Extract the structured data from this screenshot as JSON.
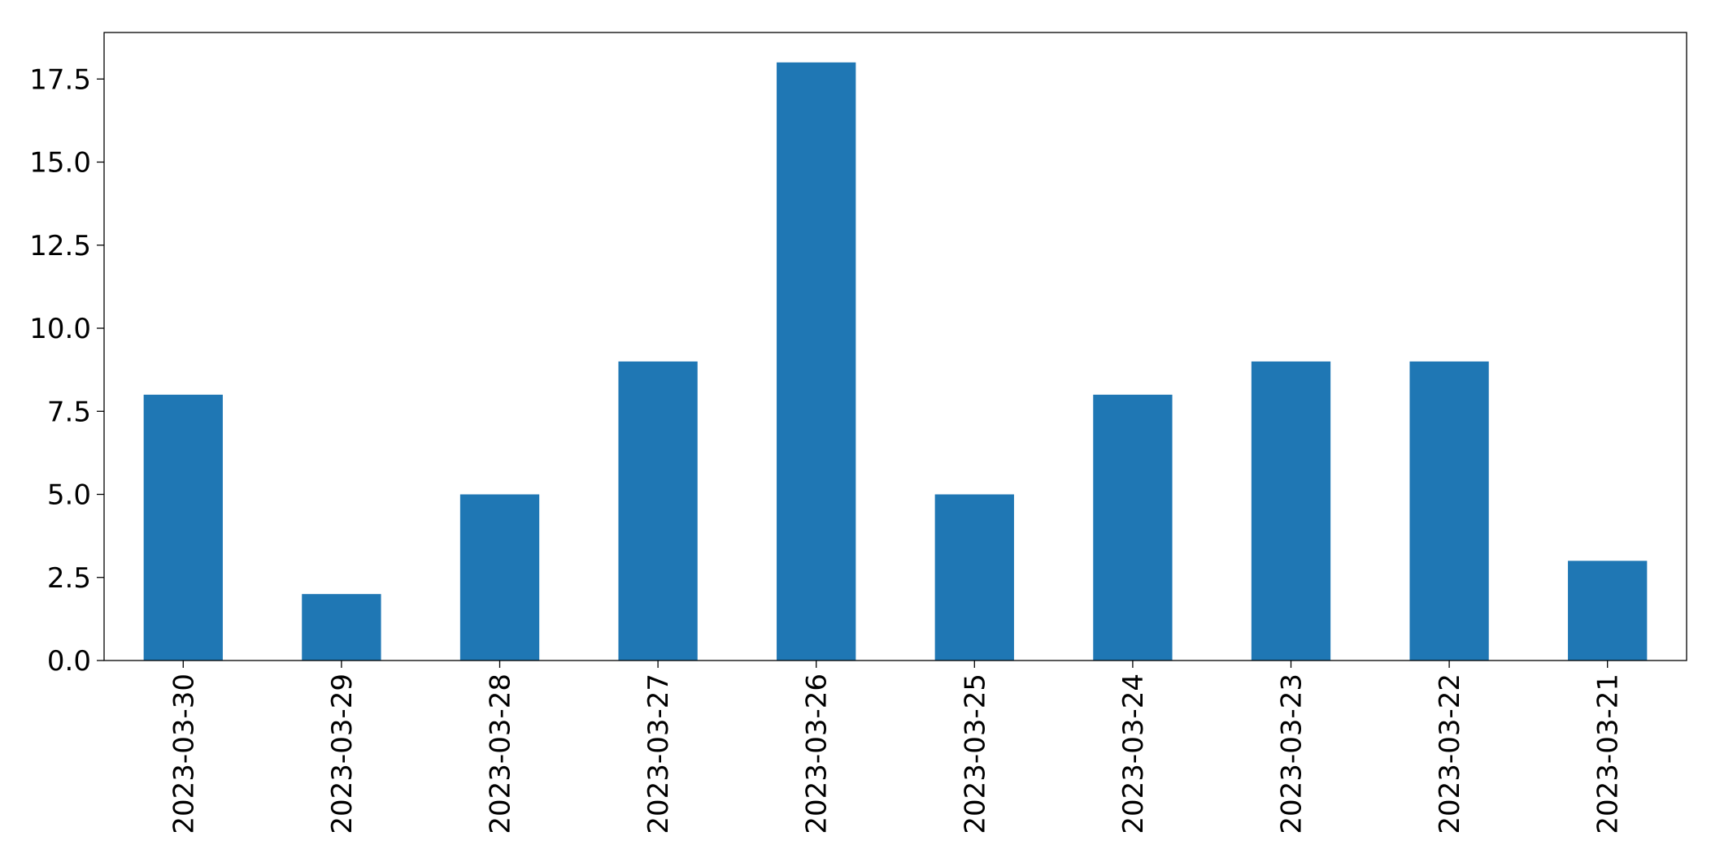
{
  "chart_data": {
    "type": "bar",
    "categories": [
      "2023-03-30",
      "2023-03-29",
      "2023-03-28",
      "2023-03-27",
      "2023-03-26",
      "2023-03-25",
      "2023-03-24",
      "2023-03-23",
      "2023-03-22",
      "2023-03-21"
    ],
    "values": [
      8,
      2,
      5,
      9,
      18,
      5,
      8,
      9,
      9,
      3
    ],
    "color": "#1f77b4",
    "ylim": [
      0,
      18.9
    ],
    "yticks": [
      {
        "value": 0,
        "label": "0.0"
      },
      2.5,
      {
        "value": 5,
        "label": "5.0"
      },
      7.5,
      {
        "value": 10,
        "label": "10.0"
      },
      12.5,
      {
        "value": 15,
        "label": "15.0"
      },
      17.5
    ],
    "grid": false
  }
}
